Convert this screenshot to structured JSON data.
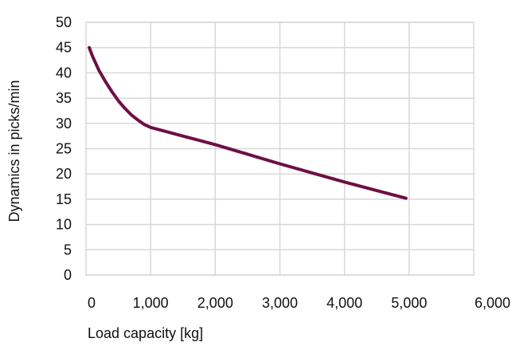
{
  "chart_data": {
    "type": "line",
    "xlabel": "Load capacity [kg]",
    "ylabel": "Dynamics in picks/min",
    "xlim": [
      0,
      6000
    ],
    "ylim": [
      0,
      50
    ],
    "grid": true,
    "x_ticks": [
      0,
      1000,
      2000,
      3000,
      4000,
      5000,
      6000
    ],
    "x_tick_labels": [
      "0",
      "1,000",
      "2,000",
      "3,000",
      "4,000",
      "5,000",
      "6,000"
    ],
    "y_ticks": [
      0,
      5,
      10,
      15,
      20,
      25,
      30,
      35,
      40,
      45,
      50
    ],
    "y_tick_labels": [
      "0",
      "5",
      "10",
      "15",
      "20",
      "25",
      "30",
      "35",
      "40",
      "45",
      "50"
    ],
    "series": [
      {
        "color": "#6d0f45",
        "x": [
          50,
          100,
          200,
          300,
          400,
          500,
          600,
          700,
          800,
          900,
          1000,
          1500,
          2000,
          2500,
          3000,
          3500,
          4000,
          4500,
          4950
        ],
        "y": [
          45,
          43.3,
          40.5,
          38.3,
          36.3,
          34.5,
          33.0,
          31.7,
          30.7,
          29.8,
          29.2,
          27.5,
          25.8,
          23.9,
          22.0,
          20.2,
          18.4,
          16.7,
          15.2
        ]
      }
    ]
  }
}
